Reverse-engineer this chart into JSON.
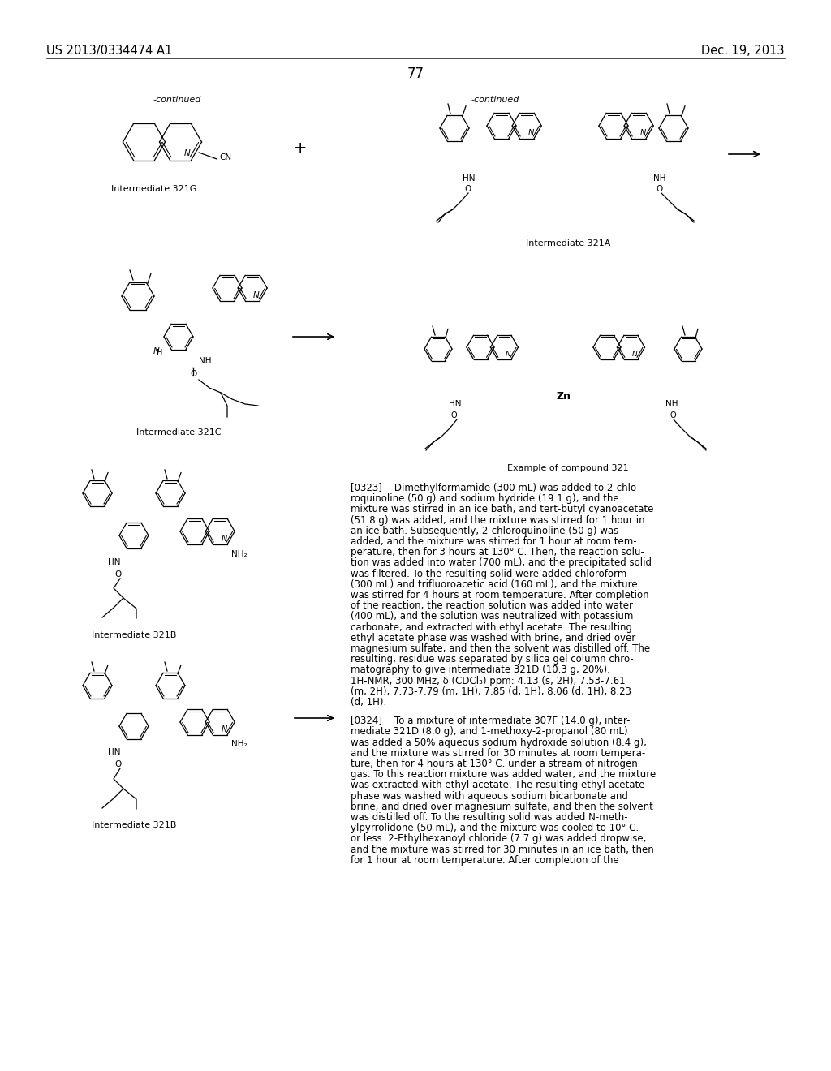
{
  "page_number": "77",
  "patent_number": "US 2013/0334474 A1",
  "patent_date": "Dec. 19, 2013",
  "background_color": "#ffffff",
  "text_color": "#000000",
  "font_size_header": 10.5,
  "font_size_page_num": 12,
  "font_size_body": 8.5,
  "font_size_caption": 8.0,
  "body_text_323": "[0323]    Dimethylformamide (300 mL) was added to 2-chlo-\nroquinoline (50 g) and sodium hydride (19.1 g), and the\nmixture was stirred in an ice bath, and tert-butyl cyanoacetate\n(51.8 g) was added, and the mixture was stirred for 1 hour in\nan ice bath. Subsequently, 2-chloroquinoline (50 g) was\nadded, and the mixture was stirred for 1 hour at room tem-\nperature, then for 3 hours at 130° C. Then, the reaction solu-\ntion was added into water (700 mL), and the precipitated solid\nwas filtered. To the resulting solid were added chloroform\n(300 mL) and trifluoroacetic acid (160 mL), and the mixture\nwas stirred for 4 hours at room temperature. After completion\nof the reaction, the reaction solution was added into water\n(400 mL), and the solution was neutralized with potassium\ncarbonate, and extracted with ethyl acetate. The resulting\nethyl acetate phase was washed with brine, and dried over\nmagnesium sulfate, and then the solvent was distilled off. The\nresulting, residue was separated by silica gel column chro-\nmatography to give intermediate 321D (10.3 g, 20%).\n1H-NMR, 300 MHz, δ (CDCl₃) ppm: 4.13 (s, 2H), 7.53-7.61\n(m, 2H), 7.73-7.79 (m, 1H), 7.85 (d, 1H), 8.06 (d, 1H), 8.23\n(d, 1H).",
  "body_text_324": "[0324]    To a mixture of intermediate 307F (14.0 g), inter-\nmediate 321D (8.0 g), and 1-methoxy-2-propanol (80 mL)\nwas added a 50% aqueous sodium hydroxide solution (8.4 g),\nand the mixture was stirred for 30 minutes at room tempera-\nture, then for 4 hours at 130° C. under a stream of nitrogen\ngas. To this reaction mixture was added water, and the mixture\nwas extracted with ethyl acetate. The resulting ethyl acetate\nphase was washed with aqueous sodium bicarbonate and\nbrine, and dried over magnesium sulfate, and then the solvent\nwas distilled off. To the resulting solid was added N-meth-\nylpyrrolidone (50 mL), and the mixture was cooled to 10° C.\nor less. 2-Ethylhexanoyl chloride (7.7 g) was added dropwise,\nand the mixture was stirred for 30 minutes in an ice bath, then\nfor 1 hour at room temperature. After completion of the"
}
